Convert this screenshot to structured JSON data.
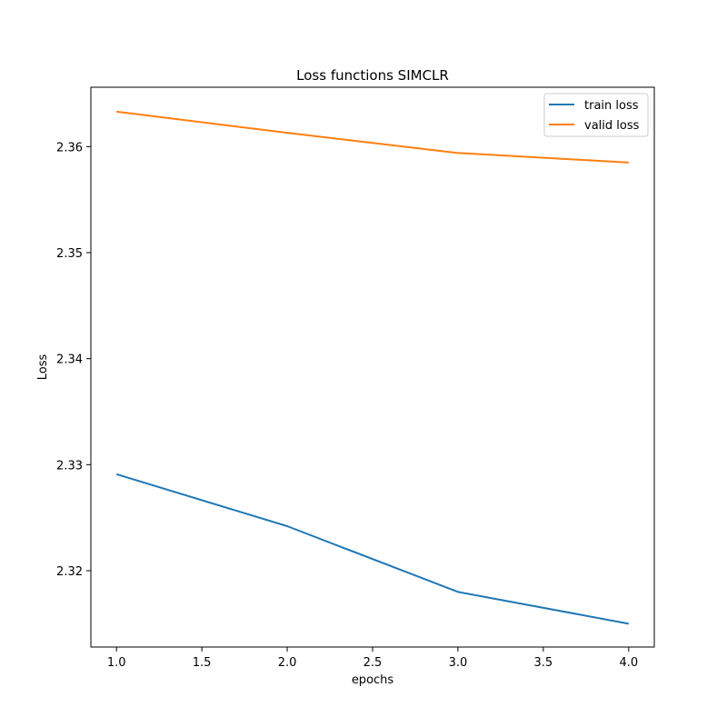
{
  "chart_data": {
    "type": "line",
    "title": "Loss functions SIMCLR",
    "xlabel": "epochs",
    "ylabel": "Loss",
    "x": [
      1.0,
      2.0,
      3.0,
      4.0
    ],
    "series": [
      {
        "name": "train loss",
        "color": "#1f77b4",
        "values": [
          2.3291,
          2.3242,
          2.318,
          2.315
        ]
      },
      {
        "name": "valid loss",
        "color": "#ff7f0e",
        "values": [
          2.3633,
          2.3613,
          2.3594,
          2.3585
        ]
      }
    ],
    "xlim": [
      0.85,
      4.15
    ],
    "ylim": [
      2.3128,
      2.3656
    ],
    "xticks": [
      "1.0",
      "1.5",
      "2.0",
      "2.5",
      "3.0",
      "3.5",
      "4.0"
    ],
    "yticks": [
      "2.32",
      "2.33",
      "2.34",
      "2.35",
      "2.36"
    ],
    "grid": false,
    "legend_position": "top-right"
  }
}
